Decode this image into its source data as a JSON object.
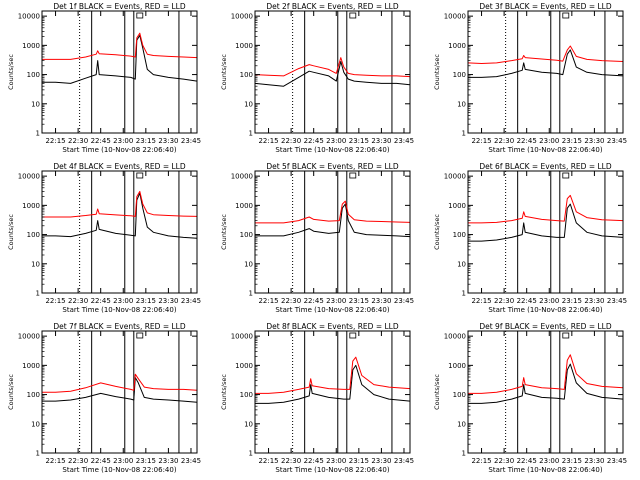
{
  "page": {
    "background": "#ffffff",
    "axis_color": "#000000"
  },
  "chart_data": [
    {
      "type": "line",
      "title": "Det 1f BLACK = Events, RED = LLD",
      "ylabel": "Counts/sec",
      "xlabel": "Start Time (10-Nov-08 22:06:40)",
      "xticks": [
        "22:15",
        "22:30",
        "22:45",
        "23:00",
        "23:15",
        "23:30",
        "23:45"
      ],
      "yticks": [
        "1",
        "10",
        "100",
        "1000",
        "10000"
      ],
      "ylim": [
        1,
        15000
      ],
      "yscale": "log",
      "markers": {
        "dotted": "22:31",
        "solid": [
          "22:39",
          "23:01",
          "23:07",
          "23:37"
        ]
      },
      "series": [
        {
          "color": "#000000",
          "x": [
            "22:06",
            "22:15",
            "22:25",
            "22:35",
            "22:42",
            "22:43",
            "22:44",
            "22:55",
            "23:05",
            "23:08",
            "23:09",
            "23:11",
            "23:13",
            "23:16",
            "23:20",
            "23:30",
            "23:40",
            "23:49"
          ],
          "values": [
            55,
            55,
            50,
            75,
            100,
            300,
            100,
            90,
            80,
            70,
            1500,
            2200,
            800,
            150,
            100,
            80,
            70,
            60
          ]
        },
        {
          "color": "#ff0000",
          "x": [
            "22:06",
            "22:15",
            "22:25",
            "22:35",
            "22:42",
            "22:43",
            "22:44",
            "22:55",
            "23:05",
            "23:08",
            "23:09",
            "23:11",
            "23:13",
            "23:16",
            "23:20",
            "23:30",
            "23:40",
            "23:49"
          ],
          "values": [
            330,
            330,
            330,
            400,
            500,
            650,
            520,
            480,
            430,
            400,
            1800,
            2600,
            1000,
            500,
            450,
            420,
            400,
            380
          ]
        }
      ]
    },
    {
      "type": "line",
      "title": "Det 2f BLACK = Events, RED = LLD",
      "ylabel": "Counts/sec",
      "xlabel": "Start Time (10-Nov-08 22:06:40)",
      "xticks": [
        "22:15",
        "22:30",
        "22:45",
        "23:00",
        "23:15",
        "23:30",
        "23:45"
      ],
      "yticks": [
        "1",
        "10",
        "100",
        "1000",
        "10000"
      ],
      "ylim": [
        1,
        15000
      ],
      "yscale": "log",
      "markers": {
        "dotted": "22:31",
        "solid": [
          "22:39",
          "23:01",
          "23:07",
          "23:37"
        ]
      },
      "series": [
        {
          "color": "#000000",
          "x": [
            "22:06",
            "22:15",
            "22:25",
            "22:35",
            "22:42",
            "22:45",
            "22:55",
            "23:00",
            "23:03",
            "23:05",
            "23:08",
            "23:12",
            "23:20",
            "23:30",
            "23:40",
            "23:49"
          ],
          "values": [
            50,
            45,
            40,
            80,
            130,
            120,
            90,
            60,
            280,
            120,
            70,
            60,
            55,
            50,
            50,
            45
          ]
        },
        {
          "color": "#ff0000",
          "x": [
            "22:06",
            "22:15",
            "22:25",
            "22:35",
            "22:42",
            "22:45",
            "22:55",
            "23:00",
            "23:03",
            "23:05",
            "23:08",
            "23:12",
            "23:20",
            "23:30",
            "23:40",
            "23:49"
          ],
          "values": [
            100,
            95,
            90,
            160,
            220,
            200,
            150,
            110,
            380,
            180,
            110,
            100,
            95,
            90,
            90,
            85
          ]
        }
      ]
    },
    {
      "type": "line",
      "title": "Det 3f BLACK = Events, RED = LLD",
      "ylabel": "Counts/sec",
      "xlabel": "Start Time (10-Nov-08 22:06:40)",
      "xticks": [
        "22:15",
        "22:30",
        "22:45",
        "23:00",
        "23:15",
        "23:30",
        "23:45"
      ],
      "yticks": [
        "1",
        "10",
        "100",
        "1000",
        "10000"
      ],
      "ylim": [
        1,
        15000
      ],
      "yscale": "log",
      "markers": {
        "dotted": "22:31",
        "solid": [
          "22:39",
          "23:01",
          "23:07",
          "23:37"
        ]
      },
      "series": [
        {
          "color": "#000000",
          "x": [
            "22:06",
            "22:15",
            "22:25",
            "22:35",
            "22:42",
            "22:43",
            "22:44",
            "22:55",
            "23:05",
            "23:09",
            "23:12",
            "23:14",
            "23:18",
            "23:25",
            "23:35",
            "23:49"
          ],
          "values": [
            80,
            80,
            85,
            110,
            140,
            250,
            150,
            120,
            110,
            100,
            500,
            700,
            180,
            120,
            100,
            90
          ]
        },
        {
          "color": "#ff0000",
          "x": [
            "22:06",
            "22:15",
            "22:25",
            "22:35",
            "22:42",
            "22:43",
            "22:44",
            "22:55",
            "23:05",
            "23:09",
            "23:12",
            "23:14",
            "23:18",
            "23:25",
            "23:35",
            "23:49"
          ],
          "values": [
            250,
            240,
            250,
            300,
            350,
            450,
            380,
            340,
            310,
            290,
            700,
            950,
            420,
            330,
            300,
            280
          ]
        }
      ]
    },
    {
      "type": "line",
      "title": "Det 4f BLACK = Events, RED = LLD",
      "ylabel": "Counts/sec",
      "xlabel": "Start Time (10-Nov-08 22:06:40)",
      "xticks": [
        "22:15",
        "22:30",
        "22:45",
        "23:00",
        "23:15",
        "23:30",
        "23:45"
      ],
      "yticks": [
        "1",
        "10",
        "100",
        "1000",
        "10000"
      ],
      "ylim": [
        1,
        15000
      ],
      "yscale": "log",
      "markers": {
        "dotted": "22:31",
        "solid": [
          "22:39",
          "23:01",
          "23:07",
          "23:37"
        ]
      },
      "series": [
        {
          "color": "#000000",
          "x": [
            "22:06",
            "22:15",
            "22:25",
            "22:35",
            "22:42",
            "22:43",
            "22:44",
            "22:55",
            "23:05",
            "23:08",
            "23:09",
            "23:11",
            "23:13",
            "23:16",
            "23:20",
            "23:30",
            "23:40",
            "23:49"
          ],
          "values": [
            90,
            90,
            85,
            110,
            140,
            300,
            150,
            110,
            95,
            90,
            1500,
            2600,
            800,
            180,
            120,
            90,
            80,
            75
          ]
        },
        {
          "color": "#ff0000",
          "x": [
            "22:06",
            "22:15",
            "22:25",
            "22:35",
            "22:42",
            "22:43",
            "22:44",
            "22:55",
            "23:05",
            "23:08",
            "23:09",
            "23:11",
            "23:13",
            "23:16",
            "23:20",
            "23:30",
            "23:40",
            "23:49"
          ],
          "values": [
            400,
            400,
            400,
            450,
            500,
            750,
            520,
            470,
            440,
            420,
            2000,
            3000,
            1100,
            550,
            480,
            450,
            430,
            420
          ]
        }
      ]
    },
    {
      "type": "line",
      "title": "Det 5f BLACK = Events, RED = LLD",
      "ylabel": "Counts/sec",
      "xlabel": "Start Time (10-Nov-08 22:06:40)",
      "xticks": [
        "22:15",
        "22:30",
        "22:45",
        "23:00",
        "23:15",
        "23:30",
        "23:45"
      ],
      "yticks": [
        "1",
        "10",
        "100",
        "1000",
        "10000"
      ],
      "ylim": [
        1,
        15000
      ],
      "yscale": "log",
      "markers": {
        "dotted": "22:31",
        "solid": [
          "22:39",
          "23:01",
          "23:07",
          "23:37"
        ]
      },
      "series": [
        {
          "color": "#000000",
          "x": [
            "22:06",
            "22:15",
            "22:25",
            "22:35",
            "22:42",
            "22:45",
            "22:55",
            "23:02",
            "23:04",
            "23:06",
            "23:08",
            "23:12",
            "23:20",
            "23:30",
            "23:40",
            "23:49"
          ],
          "values": [
            90,
            90,
            90,
            120,
            160,
            130,
            110,
            120,
            800,
            1100,
            300,
            120,
            100,
            95,
            90,
            85
          ]
        },
        {
          "color": "#ff0000",
          "x": [
            "22:06",
            "22:15",
            "22:25",
            "22:35",
            "22:42",
            "22:45",
            "22:55",
            "23:02",
            "23:04",
            "23:06",
            "23:08",
            "23:12",
            "23:20",
            "23:30",
            "23:40",
            "23:49"
          ],
          "values": [
            250,
            250,
            250,
            300,
            400,
            330,
            290,
            300,
            1100,
            1400,
            500,
            320,
            290,
            280,
            270,
            260
          ]
        }
      ]
    },
    {
      "type": "line",
      "title": "Det 6f BLACK = Events, RED = LLD",
      "ylabel": "Counts/sec",
      "xlabel": "Start Time (10-Nov-08 22:06:40)",
      "xticks": [
        "22:15",
        "22:30",
        "22:45",
        "23:00",
        "23:15",
        "23:30",
        "23:45"
      ],
      "yticks": [
        "1",
        "10",
        "100",
        "1000",
        "10000"
      ],
      "ylim": [
        1,
        15000
      ],
      "yscale": "log",
      "markers": {
        "dotted": "22:31",
        "solid": [
          "22:39",
          "23:01",
          "23:07",
          "23:37"
        ]
      },
      "series": [
        {
          "color": "#000000",
          "x": [
            "22:06",
            "22:15",
            "22:25",
            "22:35",
            "22:42",
            "22:43",
            "22:44",
            "22:55",
            "23:05",
            "23:10",
            "23:12",
            "23:14",
            "23:18",
            "23:25",
            "23:35",
            "23:49"
          ],
          "values": [
            60,
            60,
            65,
            80,
            100,
            250,
            120,
            90,
            80,
            80,
            800,
            1100,
            250,
            120,
            90,
            80
          ]
        },
        {
          "color": "#ff0000",
          "x": [
            "22:06",
            "22:15",
            "22:25",
            "22:35",
            "22:42",
            "22:43",
            "22:44",
            "22:55",
            "23:05",
            "23:10",
            "23:12",
            "23:14",
            "23:18",
            "23:25",
            "23:35",
            "23:49"
          ],
          "values": [
            250,
            250,
            260,
            300,
            360,
            600,
            420,
            330,
            300,
            290,
            1700,
            2200,
            600,
            380,
            320,
            300
          ]
        }
      ]
    },
    {
      "type": "line",
      "title": "Det 7f BLACK = Events, RED = LLD",
      "ylabel": "Counts/sec",
      "xlabel": "Start Time (10-Nov-08 22:06:40)",
      "xticks": [
        "22:15",
        "22:30",
        "22:45",
        "23:00",
        "23:15",
        "23:30",
        "23:45"
      ],
      "yticks": [
        "1",
        "10",
        "100",
        "1000",
        "10000"
      ],
      "ylim": [
        1,
        15000
      ],
      "yscale": "log",
      "markers": {
        "dotted": "22:31",
        "solid": [
          "22:39",
          "23:01",
          "23:07",
          "23:37"
        ]
      },
      "series": [
        {
          "color": "#000000",
          "x": [
            "22:06",
            "22:15",
            "22:25",
            "22:35",
            "22:45",
            "22:55",
            "23:05",
            "23:07",
            "23:08",
            "23:10",
            "23:14",
            "23:20",
            "23:30",
            "23:40",
            "23:49"
          ],
          "values": [
            60,
            60,
            65,
            80,
            110,
            85,
            70,
            65,
            380,
            250,
            80,
            70,
            65,
            60,
            55
          ]
        },
        {
          "color": "#ff0000",
          "x": [
            "22:06",
            "22:15",
            "22:25",
            "22:35",
            "22:45",
            "22:55",
            "23:05",
            "23:07",
            "23:08",
            "23:10",
            "23:14",
            "23:20",
            "23:30",
            "23:40",
            "23:49"
          ],
          "values": [
            120,
            120,
            130,
            170,
            250,
            190,
            150,
            140,
            500,
            350,
            180,
            160,
            150,
            150,
            140
          ]
        }
      ]
    },
    {
      "type": "line",
      "title": "Det 8f BLACK = Events, RED = LLD",
      "ylabel": "Counts/sec",
      "xlabel": "Start Time (10-Nov-08 22:06:40)",
      "xticks": [
        "22:15",
        "22:30",
        "22:45",
        "23:00",
        "23:15",
        "23:30",
        "23:45"
      ],
      "yticks": [
        "1",
        "10",
        "100",
        "1000",
        "10000"
      ],
      "ylim": [
        1,
        15000
      ],
      "yscale": "log",
      "markers": {
        "dotted": "22:31",
        "solid": [
          "22:39",
          "23:01",
          "23:07",
          "23:37"
        ]
      },
      "series": [
        {
          "color": "#000000",
          "x": [
            "22:06",
            "22:15",
            "22:25",
            "22:35",
            "22:42",
            "22:43",
            "22:44",
            "22:55",
            "23:05",
            "23:09",
            "23:11",
            "23:13",
            "23:17",
            "23:25",
            "23:35",
            "23:49"
          ],
          "values": [
            50,
            50,
            55,
            70,
            90,
            220,
            110,
            80,
            70,
            70,
            700,
            1000,
            220,
            100,
            70,
            60
          ]
        },
        {
          "color": "#ff0000",
          "x": [
            "22:06",
            "22:15",
            "22:25",
            "22:35",
            "22:42",
            "22:43",
            "22:44",
            "22:55",
            "23:05",
            "23:09",
            "23:11",
            "23:13",
            "23:17",
            "23:25",
            "23:35",
            "23:49"
          ],
          "values": [
            110,
            110,
            120,
            150,
            180,
            350,
            200,
            160,
            150,
            150,
            1400,
            1900,
            450,
            220,
            180,
            160
          ]
        }
      ]
    },
    {
      "type": "line",
      "title": "Det 9f BLACK = Events, RED = LLD",
      "ylabel": "Counts/sec",
      "xlabel": "Start Time (10-Nov-08 22:06:40)",
      "xticks": [
        "22:15",
        "22:30",
        "22:45",
        "23:00",
        "23:15",
        "23:30",
        "23:45"
      ],
      "yticks": [
        "1",
        "10",
        "100",
        "1000",
        "10000"
      ],
      "ylim": [
        1,
        15000
      ],
      "yscale": "log",
      "markers": {
        "dotted": "22:31",
        "solid": [
          "22:39",
          "23:01",
          "23:07",
          "23:37"
        ]
      },
      "series": [
        {
          "color": "#000000",
          "x": [
            "22:06",
            "22:15",
            "22:25",
            "22:35",
            "22:42",
            "22:43",
            "22:44",
            "22:55",
            "23:05",
            "23:10",
            "23:12",
            "23:14",
            "23:18",
            "23:25",
            "23:35",
            "23:49"
          ],
          "values": [
            50,
            50,
            55,
            70,
            90,
            220,
            110,
            80,
            75,
            70,
            700,
            1100,
            250,
            110,
            80,
            70
          ]
        },
        {
          "color": "#ff0000",
          "x": [
            "22:06",
            "22:15",
            "22:25",
            "22:35",
            "22:42",
            "22:43",
            "22:44",
            "22:55",
            "23:05",
            "23:10",
            "23:12",
            "23:14",
            "23:18",
            "23:25",
            "23:35",
            "23:49"
          ],
          "values": [
            110,
            110,
            120,
            150,
            190,
            380,
            220,
            170,
            160,
            150,
            1500,
            2300,
            520,
            240,
            190,
            170
          ]
        }
      ]
    }
  ]
}
